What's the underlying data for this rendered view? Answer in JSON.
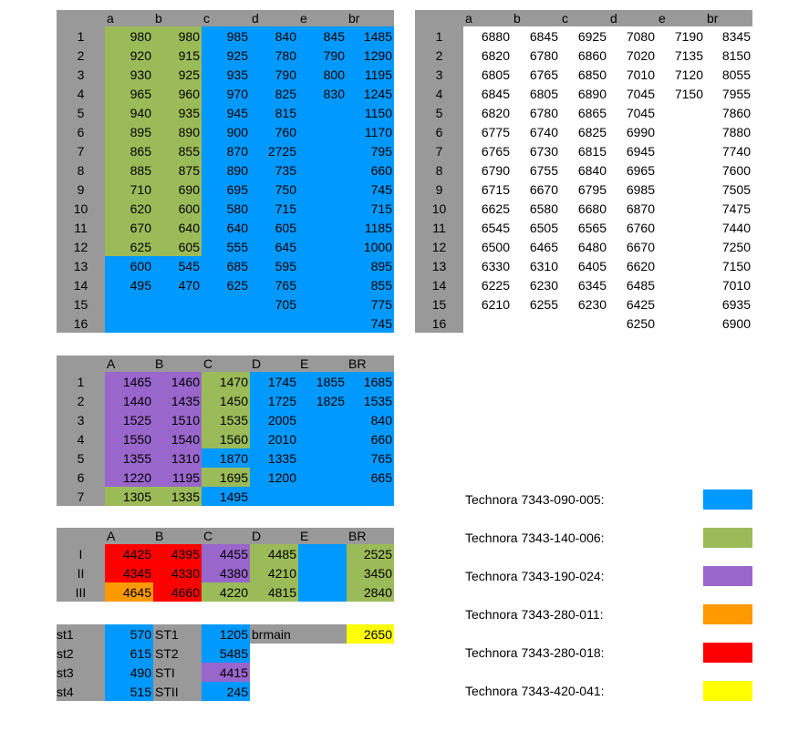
{
  "t1": {
    "headers": [
      "",
      "a",
      "b",
      "c",
      "d",
      "e",
      "br"
    ],
    "rows": [
      [
        "1",
        "980",
        "980",
        "985",
        "840",
        "845",
        "1485"
      ],
      [
        "2",
        "920",
        "915",
        "925",
        "780",
        "790",
        "1290"
      ],
      [
        "3",
        "930",
        "925",
        "935",
        "790",
        "800",
        "1195"
      ],
      [
        "4",
        "965",
        "960",
        "970",
        "825",
        "830",
        "1245"
      ],
      [
        "5",
        "940",
        "935",
        "945",
        "815",
        "",
        "1150"
      ],
      [
        "6",
        "895",
        "890",
        "900",
        "760",
        "",
        "1170"
      ],
      [
        "7",
        "865",
        "855",
        "870",
        "2725",
        "",
        "795"
      ],
      [
        "8",
        "885",
        "875",
        "890",
        "735",
        "",
        "660"
      ],
      [
        "9",
        "710",
        "690",
        "695",
        "750",
        "",
        "745"
      ],
      [
        "10",
        "620",
        "600",
        "580",
        "715",
        "",
        "715"
      ],
      [
        "11",
        "670",
        "640",
        "640",
        "605",
        "",
        "1185"
      ],
      [
        "12",
        "625",
        "605",
        "555",
        "645",
        "",
        "1000"
      ],
      [
        "13",
        "600",
        "545",
        "685",
        "595",
        "",
        "895"
      ],
      [
        "14",
        "495",
        "470",
        "625",
        "765",
        "",
        "855"
      ],
      [
        "15",
        "",
        "",
        "",
        "705",
        "",
        "775"
      ],
      [
        "16",
        "",
        "",
        "",
        "",
        "",
        "745"
      ]
    ]
  },
  "t2": {
    "headers": [
      "",
      "a",
      "b",
      "c",
      "d",
      "e",
      "br"
    ],
    "rows": [
      [
        "1",
        "6880",
        "6845",
        "6925",
        "7080",
        "7190",
        "8345"
      ],
      [
        "2",
        "6820",
        "6780",
        "6860",
        "7020",
        "7135",
        "8150"
      ],
      [
        "3",
        "6805",
        "6765",
        "6850",
        "7010",
        "7120",
        "8055"
      ],
      [
        "4",
        "6845",
        "6805",
        "6890",
        "7045",
        "7150",
        "7955"
      ],
      [
        "5",
        "6820",
        "6780",
        "6865",
        "7045",
        "",
        "7860"
      ],
      [
        "6",
        "6775",
        "6740",
        "6825",
        "6990",
        "",
        "7880"
      ],
      [
        "7",
        "6765",
        "6730",
        "6815",
        "6945",
        "",
        "7740"
      ],
      [
        "8",
        "6790",
        "6755",
        "6840",
        "6965",
        "",
        "7600"
      ],
      [
        "9",
        "6715",
        "6670",
        "6795",
        "6985",
        "",
        "7505"
      ],
      [
        "10",
        "6625",
        "6580",
        "6680",
        "6870",
        "",
        "7475"
      ],
      [
        "11",
        "6545",
        "6505",
        "6565",
        "6760",
        "",
        "7440"
      ],
      [
        "12",
        "6500",
        "6465",
        "6480",
        "6670",
        "",
        "7250"
      ],
      [
        "13",
        "6330",
        "6310",
        "6405",
        "6620",
        "",
        "7150"
      ],
      [
        "14",
        "6225",
        "6230",
        "6345",
        "6485",
        "",
        "7010"
      ],
      [
        "15",
        "6210",
        "6255",
        "6230",
        "6425",
        "",
        "6935"
      ],
      [
        "16",
        "",
        "",
        "",
        "6250",
        "",
        "6900"
      ]
    ]
  },
  "t3": {
    "headers": [
      "",
      "A",
      "B",
      "C",
      "D",
      "E",
      "BR"
    ],
    "rows": [
      [
        "1",
        "1465",
        "1460",
        "1470",
        "1745",
        "1855",
        "1685"
      ],
      [
        "2",
        "1440",
        "1435",
        "1450",
        "1725",
        "1825",
        "1535"
      ],
      [
        "3",
        "1525",
        "1510",
        "1535",
        "2005",
        "",
        "840"
      ],
      [
        "4",
        "1550",
        "1540",
        "1560",
        "2010",
        "",
        "660"
      ],
      [
        "5",
        "1355",
        "1310",
        "1870",
        "1335",
        "",
        "765"
      ],
      [
        "6",
        "1220",
        "1195",
        "1695",
        "1200",
        "",
        "665"
      ],
      [
        "7",
        "1305",
        "1335",
        "1495",
        "",
        "",
        ""
      ]
    ]
  },
  "t4": {
    "headers": [
      "",
      "A",
      "B",
      "C",
      "D",
      "E",
      "BR"
    ],
    "rows": [
      [
        "I",
        "4425",
        "4395",
        "4455",
        "4485",
        "",
        "2525"
      ],
      [
        "II",
        "4345",
        "4330",
        "4380",
        "4210",
        "",
        "3450"
      ],
      [
        "III",
        "4645",
        "4660",
        "4220",
        "4815",
        "",
        "2840"
      ]
    ]
  },
  "t5": {
    "rows": [
      [
        "st1",
        "570",
        "ST1",
        "1205",
        "brmain",
        "",
        "2650"
      ],
      [
        "st2",
        "615",
        "ST2",
        "5485",
        "",
        "",
        ""
      ],
      [
        "st3",
        "490",
        "STI",
        "4415",
        "",
        "",
        ""
      ],
      [
        "st4",
        "515",
        "STII",
        "245",
        "",
        "",
        ""
      ]
    ]
  },
  "legend": [
    {
      "label": "Technora 7343-090-005:",
      "color": "#0099FF"
    },
    {
      "label": "Technora 7343-140-006:",
      "color": "#9BBB59"
    },
    {
      "label": "Technora 7343-190-024:",
      "color": "#9966CC"
    },
    {
      "label": "Technora 7343-280-011:",
      "color": "#FF9900"
    },
    {
      "label": "Technora 7343-280-018:",
      "color": "#FF0000"
    },
    {
      "label": "Technora 7343-420-041:",
      "color": "#FFFF00"
    }
  ]
}
